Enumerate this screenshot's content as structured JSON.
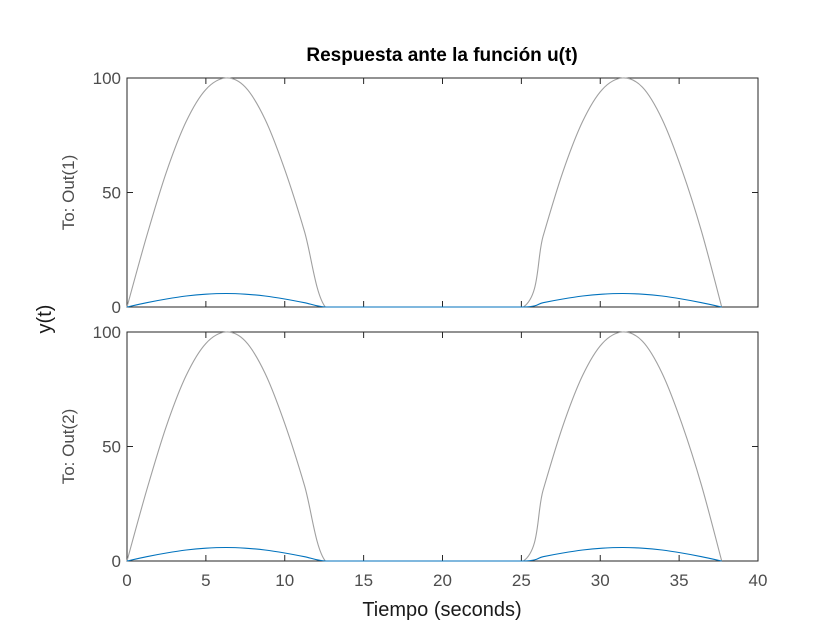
{
  "chart_data": {
    "type": "line",
    "title": "Respuesta ante la función u(t)",
    "xlabel": "Tiempo (seconds)",
    "ylabel": "y(t)",
    "xlim": [
      0,
      40
    ],
    "xticks": [
      0,
      5,
      10,
      15,
      20,
      25,
      30,
      35,
      40
    ],
    "colors": {
      "input": "#a0a0a0",
      "output": "#0072bd"
    },
    "subplots": [
      {
        "ylabel": "To: Out(1)",
        "ylim": [
          0,
          100
        ],
        "yticks": [
          0,
          50,
          100
        ],
        "series": [
          {
            "role": "input",
            "x": [
              0,
              1.25,
              2.5,
              3.75,
              5,
              6.28,
              7.5,
              8.75,
              10,
              11.25,
              12.57,
              15,
              20,
              25.13,
              26.38,
              27.63,
              28.88,
              30.13,
              31.42,
              32.67,
              33.92,
              35.17,
              36.42,
              37.7
            ],
            "y": [
              0,
              31,
              59,
              81,
              95,
              100,
              96,
              82,
              60,
              33,
              0,
              0,
              0,
              0,
              31,
              59,
              81,
              95,
              100,
              96,
              82,
              60,
              33,
              0
            ]
          },
          {
            "role": "output",
            "x": [
              0,
              1.25,
              2.5,
              3.75,
              5,
              6.28,
              7.5,
              8.75,
              10,
              11.25,
              12.57,
              15,
              20,
              25.13,
              26.38,
              27.63,
              28.88,
              30.13,
              31.42,
              32.67,
              33.92,
              35.17,
              36.42,
              37.7
            ],
            "y": [
              0,
              1.9,
              3.5,
              4.8,
              5.6,
              5.9,
              5.6,
              4.8,
              3.5,
              1.9,
              0,
              0,
              0,
              0,
              1.9,
              3.5,
              4.8,
              5.6,
              5.9,
              5.6,
              4.8,
              3.5,
              1.9,
              0
            ]
          }
        ]
      },
      {
        "ylabel": "To: Out(2)",
        "ylim": [
          0,
          100
        ],
        "yticks": [
          0,
          50,
          100
        ],
        "series": [
          {
            "role": "input",
            "x": [
              0,
              1.25,
              2.5,
              3.75,
              5,
              6.28,
              7.5,
              8.75,
              10,
              11.25,
              12.57,
              15,
              20,
              25.13,
              26.38,
              27.63,
              28.88,
              30.13,
              31.42,
              32.67,
              33.92,
              35.17,
              36.42,
              37.7
            ],
            "y": [
              0,
              31,
              59,
              81,
              95,
              100,
              96,
              82,
              60,
              33,
              0,
              0,
              0,
              0,
              31,
              59,
              81,
              95,
              100,
              96,
              82,
              60,
              33,
              0
            ]
          },
          {
            "role": "output",
            "x": [
              0,
              1.25,
              2.5,
              3.75,
              5,
              6.28,
              7.5,
              8.75,
              10,
              11.25,
              12.57,
              15,
              20,
              25.13,
              26.38,
              27.63,
              28.88,
              30.13,
              31.42,
              32.67,
              33.92,
              35.17,
              36.42,
              37.7
            ],
            "y": [
              0,
              1.9,
              3.5,
              4.8,
              5.6,
              5.9,
              5.6,
              4.8,
              3.5,
              1.9,
              0,
              0,
              0,
              0,
              1.9,
              3.5,
              4.8,
              5.6,
              5.9,
              5.6,
              4.8,
              3.5,
              1.9,
              0
            ]
          }
        ]
      }
    ]
  }
}
